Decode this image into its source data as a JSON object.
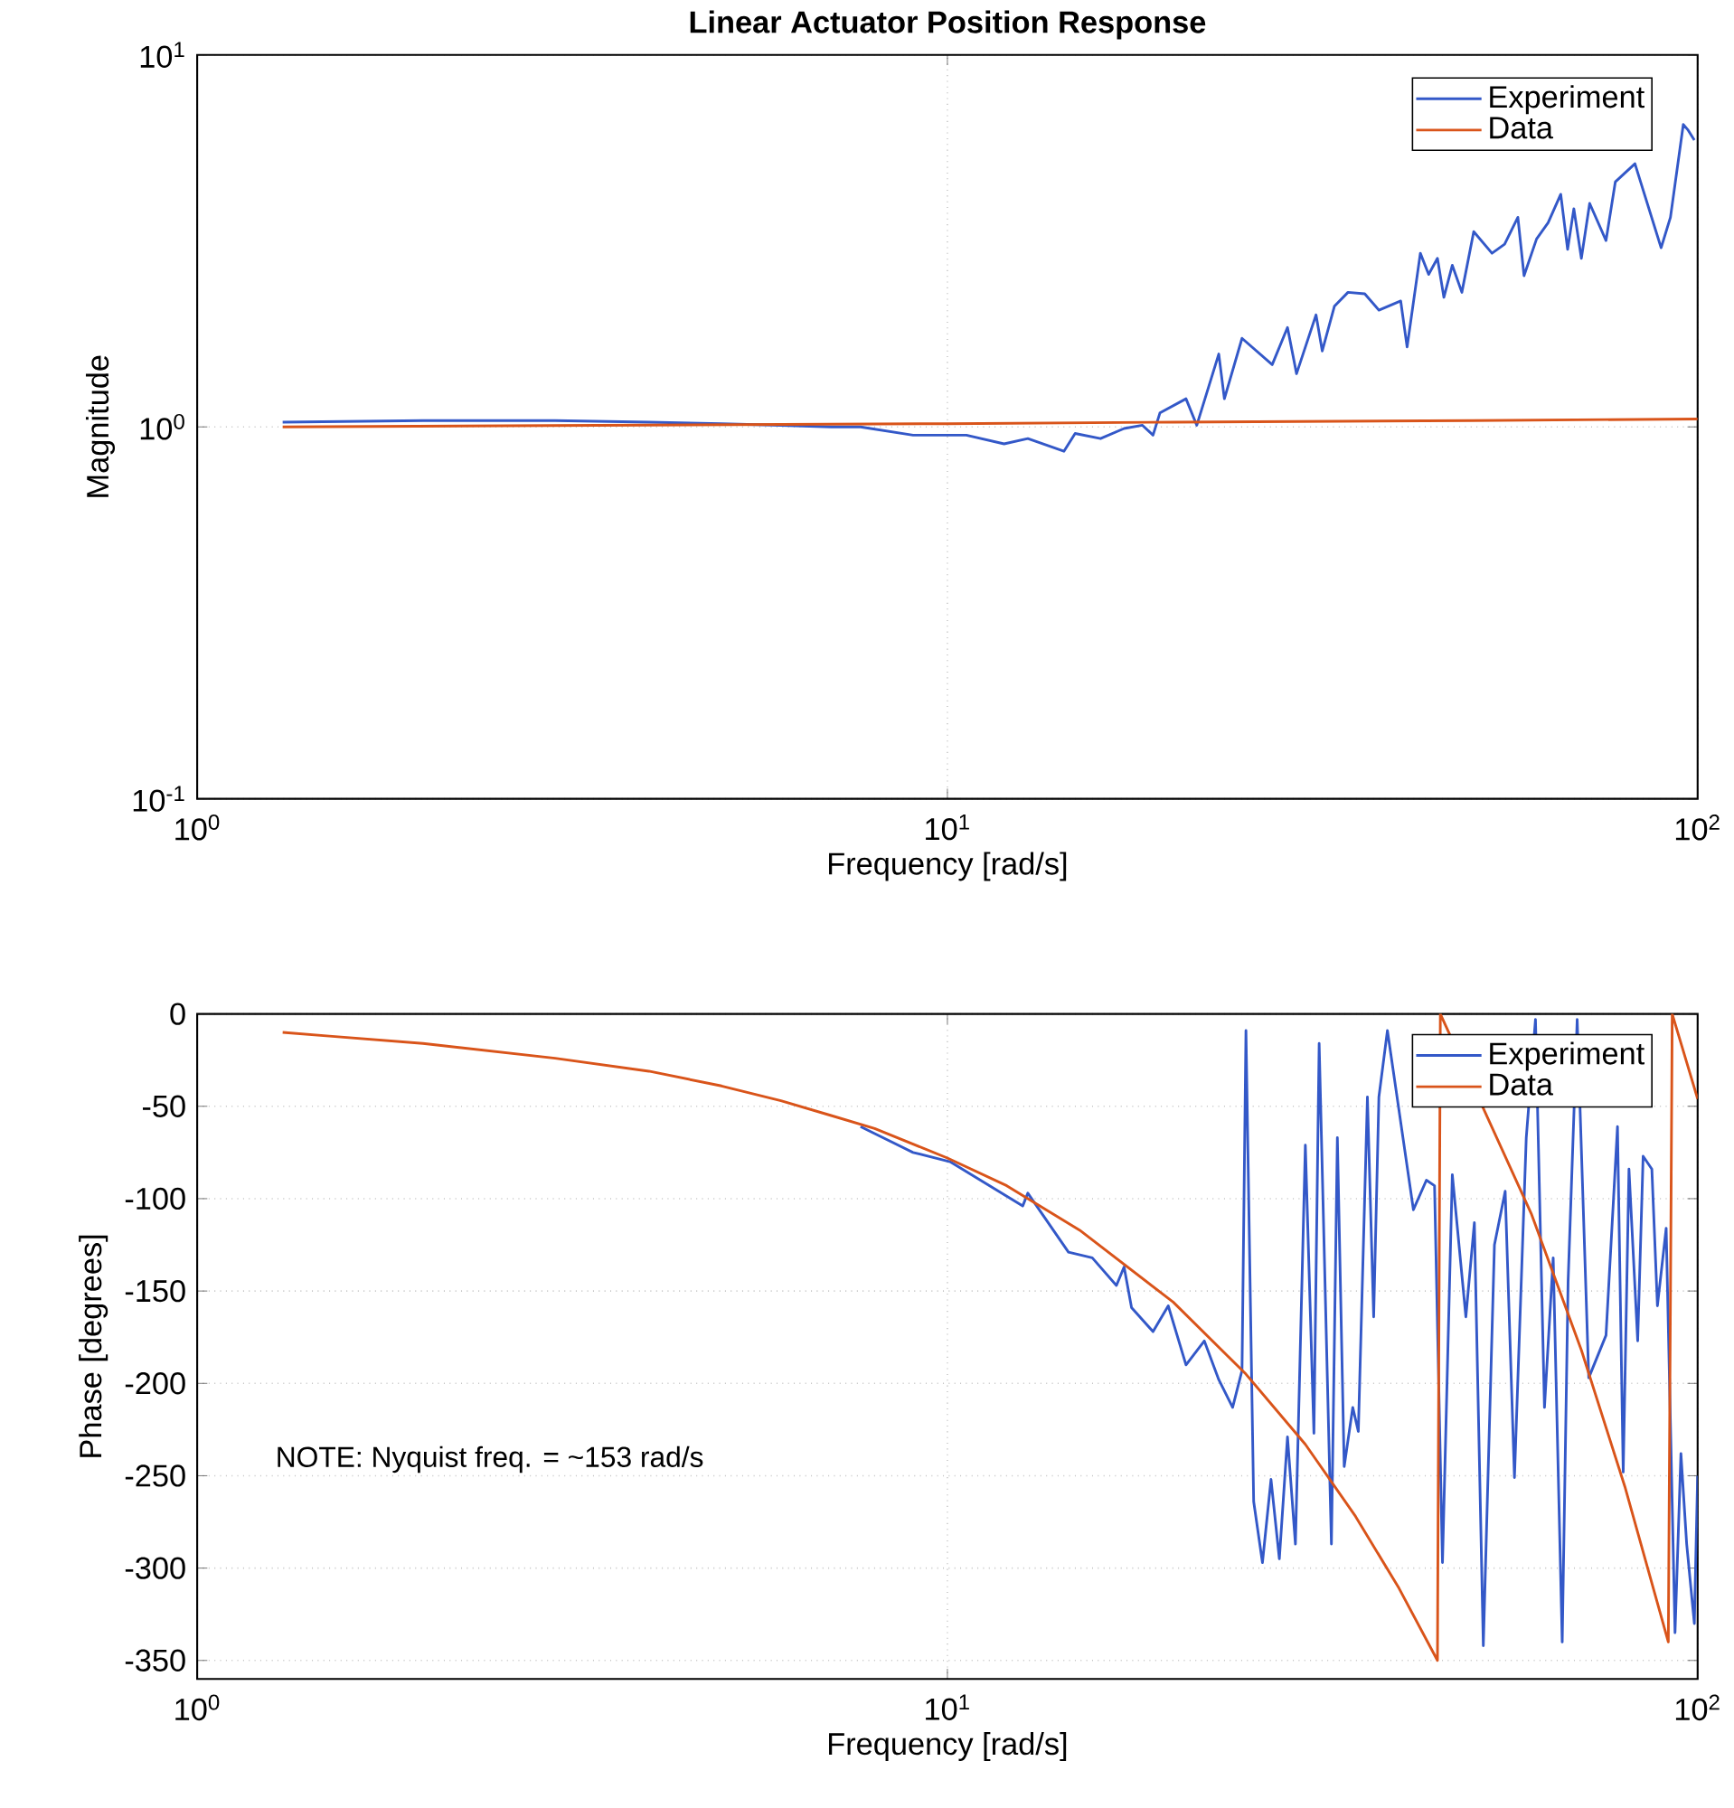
{
  "chart_data": [
    {
      "type": "line",
      "title": "Linear Actuator Position Response",
      "xlabel": "Frequency [rad/s]",
      "ylabel": "Magnitude",
      "log": "xy",
      "grid": true,
      "legend": "top right",
      "xlim": [
        1,
        100
      ],
      "ylim": [
        0.1,
        10
      ],
      "xticks": [
        {
          "value": 1,
          "label": "10$^{0}$"
        },
        {
          "value": 10,
          "label": "10$^{1}$"
        },
        {
          "value": 100,
          "label": "10$^{2}$"
        }
      ],
      "yticks": [
        {
          "value": 0.1,
          "label": "10$^{-1}$"
        },
        {
          "value": 1,
          "label": "10$^{0}$"
        },
        {
          "value": 10,
          "label": "10$^{1}$"
        }
      ],
      "series": [
        {
          "name": "Experiment",
          "color": "#3358c8",
          "x": [
            1.3,
            2,
            3,
            4,
            5,
            6,
            7,
            7.66,
            9.0,
            10.6,
            11.9,
            12.8,
            14.3,
            14.8,
            16.0,
            17.2,
            18.2,
            18.8,
            19.2,
            20.8,
            21.5,
            23.0,
            23.4,
            24.7,
            27.1,
            28.4,
            29.2,
            31.0,
            31.6,
            32.8,
            34.2,
            36.0,
            37.6,
            40.2,
            41.0,
            42.7,
            43.8,
            45.0,
            45.9,
            47.1,
            48.5,
            50.3,
            53.2,
            55.3,
            57.6,
            58.7,
            61.0,
            63.2,
            65.7,
            67.1,
            68.4,
            70.0,
            71.8,
            75.5,
            77.7,
            82.5,
            89.4,
            92.0,
            95.7,
            97,
            99
          ],
          "values": [
            1.03,
            1.04,
            1.04,
            1.03,
            1.02,
            1.01,
            1.0,
            1.0,
            0.95,
            0.95,
            0.9,
            0.93,
            0.86,
            0.96,
            0.93,
            0.99,
            1.01,
            0.95,
            1.09,
            1.19,
            1.01,
            1.57,
            1.19,
            1.73,
            1.47,
            1.85,
            1.39,
            2.0,
            1.6,
            2.11,
            2.3,
            2.28,
            2.06,
            2.18,
            1.64,
            2.93,
            2.57,
            2.84,
            2.23,
            2.72,
            2.3,
            3.35,
            2.93,
            3.1,
            3.66,
            2.55,
            3.2,
            3.54,
            4.22,
            3.0,
            3.86,
            2.84,
            3.99,
            3.17,
            4.56,
            5.1,
            3.03,
            3.66,
            6.5,
            6.3,
            5.9
          ]
        },
        {
          "name": "Data",
          "color": "#d9541a",
          "x": [
            1.3,
            10,
            20,
            50,
            100
          ],
          "values": [
            1.0,
            1.02,
            1.03,
            1.04,
            1.05
          ]
        }
      ]
    },
    {
      "type": "line",
      "xlabel": "Frequency [rad/s]",
      "ylabel": "Phase [degrees]",
      "log": "x",
      "grid": true,
      "legend": "top right",
      "xlim": [
        1,
        100
      ],
      "ylim": [
        -360,
        0
      ],
      "xticks": [
        {
          "value": 1,
          "label": "10$^{0}$"
        },
        {
          "value": 10,
          "label": "10$^{1}$"
        },
        {
          "value": 100,
          "label": "10$^{2}$"
        }
      ],
      "yticks": [
        -350,
        -300,
        -250,
        -200,
        -150,
        -100,
        -50,
        0
      ],
      "annotations": [
        "NOTE: Nyquist freq. = ~153 rad/s"
      ],
      "series": [
        {
          "name": "Experiment",
          "color": "#3358c8",
          "x": [
            7.66,
            9.0,
            10.08,
            12.6,
            12.8,
            14.5,
            15.6,
            16.8,
            17.2,
            17.6,
            18.8,
            19.7,
            20.8,
            22.0,
            23.0,
            24.0,
            24.7,
            25.0,
            25.6,
            26.3,
            27.0,
            27.7,
            28.4,
            29.1,
            30.0,
            30.8,
            31.3,
            32.5,
            33.1,
            33.8,
            34.7,
            35.3,
            36.3,
            37.0,
            37.6,
            38.6,
            41.8,
            43.5,
            44.6,
            45.7,
            47.1,
            49.1,
            50.4,
            51.8,
            53.6,
            55.4,
            57.0,
            59.1,
            60.8,
            62.5,
            64.2,
            66.0,
            67.2,
            69.1,
            71.6,
            75.5,
            78.2,
            79.6,
            81.0,
            83.2,
            84.6,
            86.9,
            88.4,
            90.8,
            93.3,
            95.0,
            96.7,
            99,
            100
          ],
          "values": [
            -61,
            -75,
            -80,
            -104,
            -97,
            -129,
            -132,
            -147,
            -137,
            -159,
            -172,
            -158,
            -190,
            -177,
            -198,
            -213,
            -193,
            -9,
            -264,
            -297,
            -252,
            -295,
            -229,
            -287,
            -71,
            -227,
            -16,
            -287,
            -67,
            -245,
            -213,
            -226,
            -45,
            -164,
            -45,
            -9,
            -106,
            -90,
            -93,
            -297,
            -87,
            -164,
            -113,
            -342,
            -125,
            -96,
            -251,
            -67,
            -3,
            -213,
            -132,
            -340,
            -145,
            -3,
            -197,
            -174,
            -61,
            -248,
            -84,
            -177,
            -77,
            -84,
            -158,
            -116,
            -335,
            -238,
            -287,
            -330,
            -250
          ]
        },
        {
          "name": "Data",
          "color": "#d9541a",
          "x": [
            1.3,
            1.5,
            2,
            3,
            4,
            5,
            6,
            7,
            8,
            10,
            12,
            15,
            20,
            25,
            30,
            35,
            40,
            45,
            45.4,
            60,
            70,
            80,
            91.4,
            92.5,
            100
          ],
          "values": [
            -10,
            -12,
            -16,
            -24,
            -31,
            -39,
            -47,
            -55,
            -62,
            -78,
            -93,
            -117,
            -156,
            -195,
            -233,
            -272,
            -311,
            -350,
            0,
            -108,
            -182,
            -256,
            -340,
            0,
            -46
          ]
        }
      ]
    }
  ]
}
